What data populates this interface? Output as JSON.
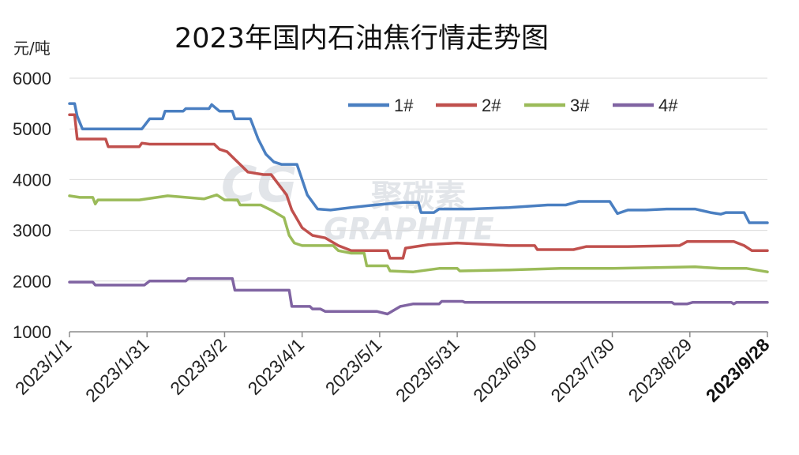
{
  "chart_data": {
    "type": "line",
    "title": "2023年国内石油焦行情走势图",
    "ylabel": "元/吨",
    "xlabel": "",
    "ylim": [
      1000,
      6000
    ],
    "yticks": [
      1000,
      2000,
      3000,
      4000,
      5000,
      6000
    ],
    "xlim": [
      "2023/1/1",
      "2023/9/28"
    ],
    "xticks": [
      "2023/1/1",
      "2023/1/31",
      "2023/3/2",
      "2023/4/1",
      "2023/5/1",
      "2023/5/31",
      "2023/6/30",
      "2023/7/30",
      "2023/8/29",
      "2023/9/28"
    ],
    "grid": true,
    "legend_position": "top-right",
    "watermark": "CGRAPHITE",
    "series": [
      {
        "name": "1#",
        "color": "#4a7fc1",
        "points": [
          [
            "2023/1/1",
            5500
          ],
          [
            "2023/1/3",
            5500
          ],
          [
            "2023/1/4",
            5250
          ],
          [
            "2023/1/6",
            5000
          ],
          [
            "2023/1/29",
            5000
          ],
          [
            "2023/2/1",
            5200
          ],
          [
            "2023/2/6",
            5200
          ],
          [
            "2023/2/7",
            5350
          ],
          [
            "2023/2/14",
            5350
          ],
          [
            "2023/2/15",
            5400
          ],
          [
            "2023/2/24",
            5400
          ],
          [
            "2023/2/25",
            5480
          ],
          [
            "2023/2/28",
            5350
          ],
          [
            "2023/3/5",
            5350
          ],
          [
            "2023/3/6",
            5200
          ],
          [
            "2023/3/12",
            5200
          ],
          [
            "2023/3/15",
            4800
          ],
          [
            "2023/3/18",
            4500
          ],
          [
            "2023/3/21",
            4350
          ],
          [
            "2023/3/24",
            4300
          ],
          [
            "2023/3/30",
            4300
          ],
          [
            "2023/4/3",
            3700
          ],
          [
            "2023/4/7",
            3420
          ],
          [
            "2023/4/12",
            3400
          ],
          [
            "2023/4/20",
            3450
          ],
          [
            "2023/4/29",
            3500
          ],
          [
            "2023/5/10",
            3550
          ],
          [
            "2023/5/16",
            3550
          ],
          [
            "2023/5/17",
            3350
          ],
          [
            "2023/5/22",
            3350
          ],
          [
            "2023/5/24",
            3420
          ],
          [
            "2023/6/5",
            3420
          ],
          [
            "2023/6/20",
            3450
          ],
          [
            "2023/7/5",
            3500
          ],
          [
            "2023/7/12",
            3500
          ],
          [
            "2023/7/17",
            3570
          ],
          [
            "2023/7/29",
            3570
          ],
          [
            "2023/8/1",
            3330
          ],
          [
            "2023/8/5",
            3400
          ],
          [
            "2023/8/12",
            3400
          ],
          [
            "2023/8/20",
            3420
          ],
          [
            "2023/8/31",
            3420
          ],
          [
            "2023/9/6",
            3350
          ],
          [
            "2023/9/10",
            3320
          ],
          [
            "2023/9/12",
            3350
          ],
          [
            "2023/9/19",
            3350
          ],
          [
            "2023/9/21",
            3150
          ],
          [
            "2023/9/28",
            3150
          ]
        ]
      },
      {
        "name": "2#",
        "color": "#c0504d",
        "points": [
          [
            "2023/1/1",
            5280
          ],
          [
            "2023/1/3",
            5280
          ],
          [
            "2023/1/4",
            4800
          ],
          [
            "2023/1/15",
            4800
          ],
          [
            "2023/1/16",
            4650
          ],
          [
            "2023/1/28",
            4650
          ],
          [
            "2023/1/29",
            4720
          ],
          [
            "2023/2/1",
            4700
          ],
          [
            "2023/2/26",
            4700
          ],
          [
            "2023/2/28",
            4600
          ],
          [
            "2023/3/3",
            4550
          ],
          [
            "2023/3/6",
            4400
          ],
          [
            "2023/3/8",
            4300
          ],
          [
            "2023/3/11",
            4150
          ],
          [
            "2023/3/17",
            4100
          ],
          [
            "2023/3/20",
            4100
          ],
          [
            "2023/3/23",
            3900
          ],
          [
            "2023/3/26",
            3700
          ],
          [
            "2023/3/28",
            3400
          ],
          [
            "2023/4/1",
            3050
          ],
          [
            "2023/4/5",
            2900
          ],
          [
            "2023/4/10",
            2850
          ],
          [
            "2023/4/15",
            2700
          ],
          [
            "2023/4/20",
            2600
          ],
          [
            "2023/5/1",
            2600
          ],
          [
            "2023/5/4",
            2600
          ],
          [
            "2023/5/5",
            2450
          ],
          [
            "2023/5/10",
            2450
          ],
          [
            "2023/5/11",
            2650
          ],
          [
            "2023/5/20",
            2720
          ],
          [
            "2023/5/31",
            2750
          ],
          [
            "2023/6/20",
            2700
          ],
          [
            "2023/6/30",
            2700
          ],
          [
            "2023/7/1",
            2620
          ],
          [
            "2023/7/15",
            2620
          ],
          [
            "2023/7/20",
            2680
          ],
          [
            "2023/8/5",
            2680
          ],
          [
            "2023/8/25",
            2700
          ],
          [
            "2023/8/28",
            2780
          ],
          [
            "2023/9/15",
            2780
          ],
          [
            "2023/9/19",
            2700
          ],
          [
            "2023/9/22",
            2600
          ],
          [
            "2023/9/28",
            2600
          ]
        ]
      },
      {
        "name": "3#",
        "color": "#9bbb59",
        "points": [
          [
            "2023/1/1",
            3680
          ],
          [
            "2023/1/5",
            3650
          ],
          [
            "2023/1/10",
            3650
          ],
          [
            "2023/1/11",
            3520
          ],
          [
            "2023/1/12",
            3600
          ],
          [
            "2023/1/28",
            3600
          ],
          [
            "2023/2/8",
            3680
          ],
          [
            "2023/2/22",
            3620
          ],
          [
            "2023/2/27",
            3700
          ],
          [
            "2023/3/2",
            3600
          ],
          [
            "2023/3/7",
            3600
          ],
          [
            "2023/3/8",
            3500
          ],
          [
            "2023/3/16",
            3500
          ],
          [
            "2023/3/20",
            3400
          ],
          [
            "2023/3/25",
            3250
          ],
          [
            "2023/3/27",
            2900
          ],
          [
            "2023/3/29",
            2750
          ],
          [
            "2023/4/1",
            2700
          ],
          [
            "2023/4/13",
            2700
          ],
          [
            "2023/4/15",
            2600
          ],
          [
            "2023/4/20",
            2550
          ],
          [
            "2023/4/25",
            2550
          ],
          [
            "2023/4/26",
            2300
          ],
          [
            "2023/5/4",
            2300
          ],
          [
            "2023/5/5",
            2200
          ],
          [
            "2023/5/14",
            2180
          ],
          [
            "2023/5/24",
            2250
          ],
          [
            "2023/5/31",
            2250
          ],
          [
            "2023/6/1",
            2200
          ],
          [
            "2023/6/20",
            2220
          ],
          [
            "2023/7/10",
            2250
          ],
          [
            "2023/7/30",
            2250
          ],
          [
            "2023/8/20",
            2270
          ],
          [
            "2023/8/31",
            2280
          ],
          [
            "2023/9/10",
            2250
          ],
          [
            "2023/9/20",
            2250
          ],
          [
            "2023/9/28",
            2180
          ]
        ]
      },
      {
        "name": "4#",
        "color": "#8064a2",
        "points": [
          [
            "2023/1/1",
            1980
          ],
          [
            "2023/1/10",
            1980
          ],
          [
            "2023/1/11",
            1920
          ],
          [
            "2023/1/30",
            1920
          ],
          [
            "2023/2/1",
            2000
          ],
          [
            "2023/2/15",
            2000
          ],
          [
            "2023/2/16",
            2050
          ],
          [
            "2023/3/5",
            2050
          ],
          [
            "2023/3/6",
            1820
          ],
          [
            "2023/3/27",
            1820
          ],
          [
            "2023/3/28",
            1500
          ],
          [
            "2023/4/4",
            1500
          ],
          [
            "2023/4/5",
            1450
          ],
          [
            "2023/4/8",
            1450
          ],
          [
            "2023/4/10",
            1400
          ],
          [
            "2023/4/30",
            1400
          ],
          [
            "2023/5/4",
            1350
          ],
          [
            "2023/5/9",
            1500
          ],
          [
            "2023/5/14",
            1550
          ],
          [
            "2023/5/24",
            1550
          ],
          [
            "2023/5/25",
            1600
          ],
          [
            "2023/6/2",
            1600
          ],
          [
            "2023/6/3",
            1580
          ],
          [
            "2023/8/22",
            1580
          ],
          [
            "2023/8/23",
            1550
          ],
          [
            "2023/8/28",
            1550
          ],
          [
            "2023/8/30",
            1580
          ],
          [
            "2023/9/14",
            1580
          ],
          [
            "2023/9/15",
            1550
          ],
          [
            "2023/9/16",
            1580
          ],
          [
            "2023/9/28",
            1580
          ]
        ]
      }
    ]
  }
}
